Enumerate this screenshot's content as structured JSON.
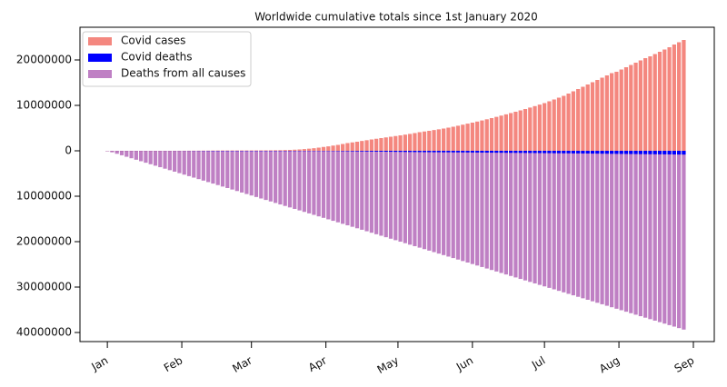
{
  "chart_data": {
    "type": "bar",
    "title": "Worldwide cumulative totals since 1st January 2020",
    "legend": "upper left",
    "grid": false,
    "xlim": [
      -11.4,
      252.7
    ],
    "ylim": [
      -42000000,
      27200000
    ],
    "yticks": [
      20000000,
      10000000,
      0,
      {
        "value": -10000000,
        "label": "10000000"
      },
      {
        "value": -20000000,
        "label": "20000000"
      },
      {
        "value": -30000000,
        "label": "30000000"
      },
      {
        "value": -40000000,
        "label": "40000000"
      }
    ],
    "xticks": [
      {
        "value": 0,
        "label": "Jan"
      },
      {
        "value": 31,
        "label": "Feb"
      },
      {
        "value": 60,
        "label": "Mar"
      },
      {
        "value": 91,
        "label": "Apr"
      },
      {
        "value": 121,
        "label": "May"
      },
      {
        "value": 152,
        "label": "Jun"
      },
      {
        "value": 182,
        "label": "Jul"
      },
      {
        "value": 213,
        "label": "Aug"
      },
      {
        "value": 244,
        "label": "Sep"
      }
    ],
    "x": [
      0,
      2,
      4,
      6,
      8,
      10,
      12,
      14,
      16,
      18,
      20,
      22,
      24,
      26,
      28,
      30,
      32,
      34,
      36,
      38,
      40,
      42,
      44,
      46,
      48,
      50,
      52,
      54,
      56,
      58,
      60,
      62,
      64,
      66,
      68,
      70,
      72,
      74,
      76,
      78,
      80,
      82,
      84,
      86,
      88,
      90,
      92,
      94,
      96,
      98,
      100,
      102,
      104,
      106,
      108,
      110,
      112,
      114,
      116,
      118,
      120,
      122,
      124,
      126,
      128,
      130,
      132,
      134,
      136,
      138,
      140,
      142,
      144,
      146,
      148,
      150,
      152,
      154,
      156,
      158,
      160,
      162,
      164,
      166,
      168,
      170,
      172,
      174,
      176,
      178,
      180,
      182,
      184,
      186,
      188,
      190,
      192,
      194,
      196,
      198,
      200,
      202,
      204,
      206,
      208,
      210,
      212,
      214,
      216,
      218,
      220,
      222,
      224,
      226,
      228,
      230,
      232,
      234,
      236,
      238,
      240
    ],
    "series": [
      {
        "name": "Covid cases",
        "color": "#f4877f",
        "values": [
          0,
          0,
          0,
          0,
          0,
          0,
          0,
          0,
          0,
          0,
          0,
          600,
          900,
          2000,
          4500,
          8000,
          12000,
          17000,
          24000,
          31000,
          40000,
          45000,
          60000,
          69000,
          73000,
          76000,
          78000,
          79000,
          81000,
          84000,
          88000,
          93000,
          98000,
          106000,
          115000,
          126000,
          145000,
          170000,
          200000,
          245000,
          300000,
          380000,
          470000,
          570000,
          700000,
          850000,
          980000,
          1150000,
          1300000,
          1500000,
          1700000,
          1850000,
          2000000,
          2170000,
          2330000,
          2500000,
          2650000,
          2800000,
          2950000,
          3100000,
          3250000,
          3400000,
          3560000,
          3720000,
          3900000,
          4100000,
          4250000,
          4400000,
          4570000,
          4730000,
          4900000,
          5100000,
          5300000,
          5520000,
          5750000,
          5980000,
          6200000,
          6440000,
          6680000,
          6940000,
          7200000,
          7470000,
          7750000,
          8030000,
          8310000,
          8600000,
          8900000,
          9200000,
          9520000,
          9840000,
          10170000,
          10500000,
          10900000,
          11300000,
          11700000,
          12100000,
          12600000,
          13100000,
          13600000,
          14100000,
          14600000,
          15100000,
          15600000,
          16100000,
          16600000,
          17100000,
          17400000,
          17900000,
          18400000,
          18900000,
          19400000,
          19900000,
          20400000,
          20800000,
          21300000,
          21800000,
          22300000,
          22800000,
          23400000,
          23900000,
          24400000
        ]
      },
      {
        "name": "Covid deaths",
        "color": "#0000ff",
        "values": [
          0,
          0,
          0,
          0,
          0,
          0,
          0,
          0,
          0,
          0,
          0,
          -17,
          -26,
          -56,
          -106,
          -213,
          -362,
          -565,
          -812,
          -1018,
          -1115,
          -1370,
          -1526,
          -1666,
          -2009,
          -2250,
          -2460,
          -2620,
          -2700,
          -2800,
          -3000,
          -3200,
          -3500,
          -3800,
          -4300,
          -4600,
          -5400,
          -6500,
          -8000,
          -10000,
          -13000,
          -17000,
          -22000,
          -28000,
          -35000,
          -44000,
          -53000,
          -64000,
          -76000,
          -88000,
          -100000,
          -114000,
          -127000,
          -140000,
          -152000,
          -165000,
          -178000,
          -191000,
          -204000,
          -216000,
          -229000,
          -240000,
          -252000,
          -263000,
          -274000,
          -285000,
          -294000,
          -303000,
          -312000,
          -318000,
          -325000,
          -333000,
          -341000,
          -349000,
          -357000,
          -365000,
          -373000,
          -382000,
          -391000,
          -400000,
          -410000,
          -419000,
          -428000,
          -437000,
          -446000,
          -455000,
          -464000,
          -474000,
          -483000,
          -493000,
          -502000,
          -512000,
          -521000,
          -531000,
          -540000,
          -550000,
          -560000,
          -570000,
          -580000,
          -590000,
          -600000,
          -612000,
          -624000,
          -636000,
          -648000,
          -661000,
          -674000,
          -686000,
          -697000,
          -709000,
          -720000,
          -730000,
          -740000,
          -750000,
          -760000,
          -770000,
          -782000,
          -794000,
          -806000,
          -818000,
          -830000
        ]
      },
      {
        "name": "Deaths from all causes",
        "color": "#bf80c4",
        "values": [
          0,
          -328000,
          -656000,
          -984000,
          -1312000,
          -1640000,
          -1968000,
          -2296000,
          -2624000,
          -2952000,
          -3280000,
          -3608000,
          -3936000,
          -4264000,
          -4592000,
          -4920000,
          -5248000,
          -5576000,
          -5904000,
          -6232000,
          -6560000,
          -6888000,
          -7216000,
          -7544000,
          -7872000,
          -8200000,
          -8528000,
          -8856000,
          -9184000,
          -9512000,
          -9840000,
          -10168000,
          -10496000,
          -10824000,
          -11152000,
          -11480000,
          -11808000,
          -12136000,
          -12464000,
          -12792000,
          -13120000,
          -13448000,
          -13776000,
          -14104000,
          -14432000,
          -14760000,
          -15088000,
          -15416000,
          -15744000,
          -16072000,
          -16400000,
          -16728000,
          -17056000,
          -17384000,
          -17712000,
          -18040000,
          -18368000,
          -18696000,
          -19024000,
          -19352000,
          -19680000,
          -20008000,
          -20336000,
          -20664000,
          -20992000,
          -21320000,
          -21648000,
          -21976000,
          -22304000,
          -22632000,
          -22960000,
          -23288000,
          -23616000,
          -23944000,
          -24272000,
          -24600000,
          -24928000,
          -25256000,
          -25584000,
          -25912000,
          -26240000,
          -26568000,
          -26896000,
          -27224000,
          -27552000,
          -27880000,
          -28208000,
          -28536000,
          -28864000,
          -29192000,
          -29520000,
          -29848000,
          -30176000,
          -30504000,
          -30832000,
          -31160000,
          -31488000,
          -31816000,
          -32144000,
          -32472000,
          -32800000,
          -33128000,
          -33456000,
          -33784000,
          -34112000,
          -34440000,
          -34768000,
          -35096000,
          -35424000,
          -35752000,
          -36080000,
          -36408000,
          -36736000,
          -37064000,
          -37392000,
          -37720000,
          -38048000,
          -38376000,
          -38704000,
          -39032000,
          -39360000
        ]
      }
    ]
  }
}
